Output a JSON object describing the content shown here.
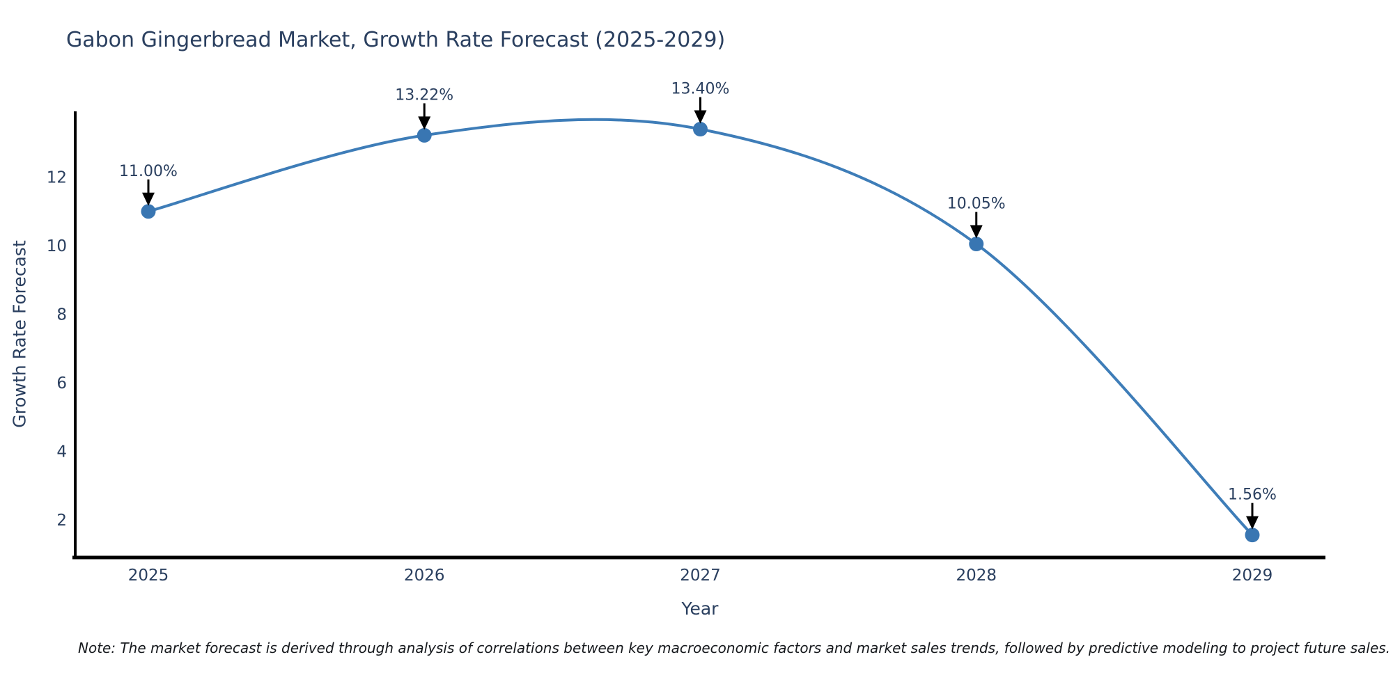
{
  "note": "Note: The market forecast is derived through analysis of correlations between key macroeconomic factors and market sales trends, followed by predictive modeling to project future sales.",
  "chart_data": {
    "type": "line",
    "title": "Gabon Gingerbread Market, Growth Rate Forecast (2025-2029)",
    "x": [
      "2025",
      "2026",
      "2027",
      "2028",
      "2029"
    ],
    "series": [
      {
        "name": "Growth Rate Forecast",
        "values": [
          11.0,
          13.22,
          13.4,
          10.05,
          1.56
        ]
      }
    ],
    "point_labels": [
      "11.00%",
      "13.22%",
      "13.40%",
      "10.05%",
      "1.56%"
    ],
    "xlabel": "Year",
    "ylabel": "Growth Rate Forecast",
    "yticks": [
      2,
      4,
      6,
      8,
      10,
      12
    ],
    "ylim": [
      0.9,
      13.95
    ],
    "line_shape": "spline",
    "grid": false,
    "legend_position": "none",
    "annotation_style": "arrow-down-to-point",
    "colors": {
      "line": "#3e7db8",
      "marker": "#3976b2",
      "axis": "#000000",
      "arrow": "#000000",
      "text": "#2a3f5f",
      "background": "#ffffff"
    }
  }
}
